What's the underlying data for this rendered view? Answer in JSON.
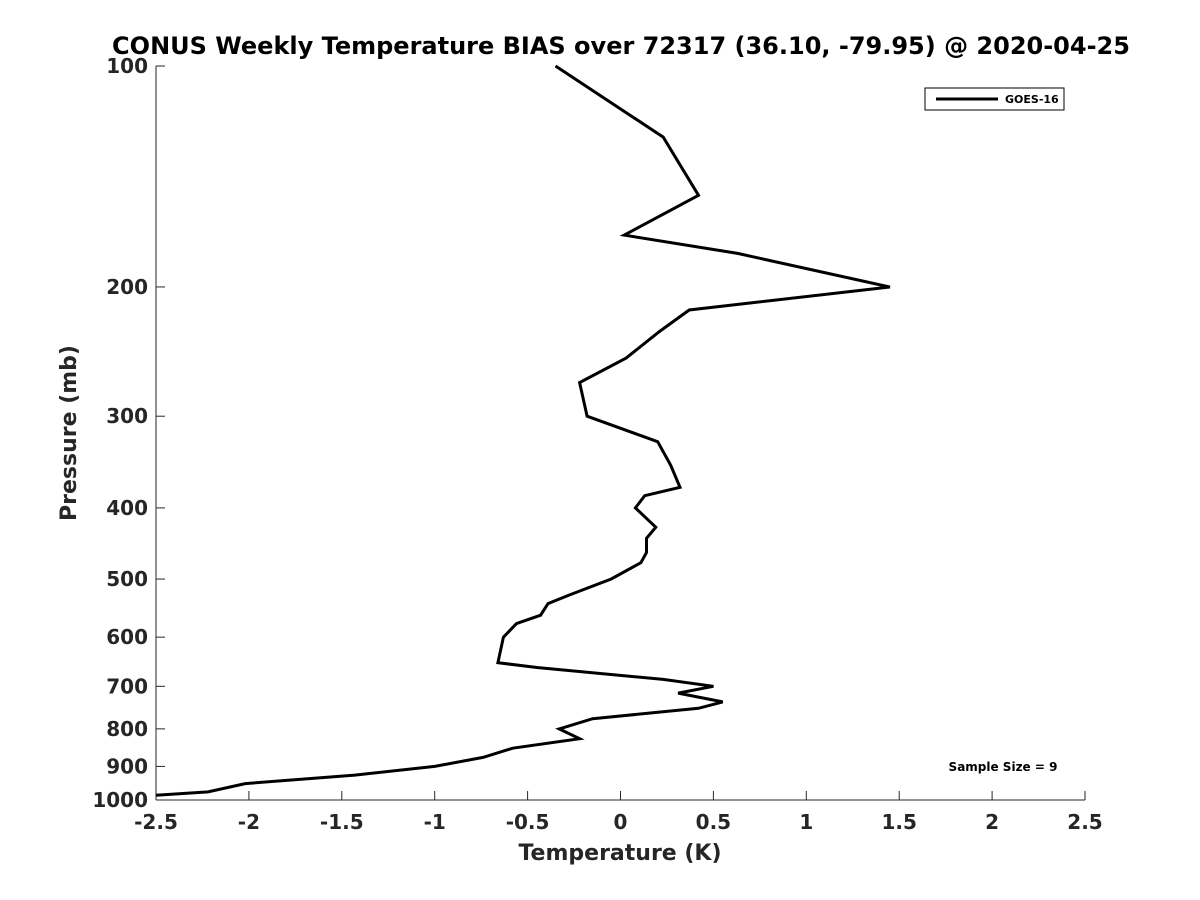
{
  "chart_data": {
    "type": "line",
    "title": "CONUS Weekly Temperature BIAS over 72317 (36.10, -79.95) @ 2020-04-25",
    "xlabel": "Temperature (K)",
    "ylabel": "Pressure (mb)",
    "xlim": [
      -2.5,
      2.5
    ],
    "ylim": [
      100,
      1000
    ],
    "y_scale": "log",
    "y_reversed": true,
    "x_ticks": [
      "-2.5",
      "-2",
      "-1.5",
      "-1",
      "-0.5",
      "0",
      "0.5",
      "1",
      "1.5",
      "2",
      "2.5"
    ],
    "y_ticks": [
      "100",
      "200",
      "300",
      "400",
      "500",
      "600",
      "700",
      "800",
      "900",
      "1000"
    ],
    "grid": false,
    "legend_position": "top-right",
    "annotation": "Sample Size = 9",
    "series": [
      {
        "name": "GOES-16",
        "color": "#000000",
        "points": [
          {
            "t": -0.35,
            "p": 100
          },
          {
            "t": 0.23,
            "p": 125
          },
          {
            "t": 0.42,
            "p": 150
          },
          {
            "t": 0.02,
            "p": 170
          },
          {
            "t": 0.63,
            "p": 180
          },
          {
            "t": 1.45,
            "p": 200
          },
          {
            "t": 0.37,
            "p": 215
          },
          {
            "t": 0.21,
            "p": 230
          },
          {
            "t": 0.03,
            "p": 250
          },
          {
            "t": -0.22,
            "p": 270
          },
          {
            "t": -0.18,
            "p": 300
          },
          {
            "t": 0.2,
            "p": 325
          },
          {
            "t": 0.27,
            "p": 350
          },
          {
            "t": 0.32,
            "p": 375
          },
          {
            "t": 0.13,
            "p": 385
          },
          {
            "t": 0.08,
            "p": 400
          },
          {
            "t": 0.19,
            "p": 425
          },
          {
            "t": 0.14,
            "p": 440
          },
          {
            "t": 0.14,
            "p": 460
          },
          {
            "t": 0.11,
            "p": 475
          },
          {
            "t": -0.05,
            "p": 500
          },
          {
            "t": -0.27,
            "p": 525
          },
          {
            "t": -0.39,
            "p": 540
          },
          {
            "t": -0.43,
            "p": 560
          },
          {
            "t": -0.56,
            "p": 575
          },
          {
            "t": -0.63,
            "p": 600
          },
          {
            "t": -0.66,
            "p": 650
          },
          {
            "t": -0.45,
            "p": 660
          },
          {
            "t": 0.23,
            "p": 685
          },
          {
            "t": 0.5,
            "p": 700
          },
          {
            "t": 0.31,
            "p": 715
          },
          {
            "t": 0.55,
            "p": 735
          },
          {
            "t": 0.42,
            "p": 750
          },
          {
            "t": -0.15,
            "p": 775
          },
          {
            "t": -0.33,
            "p": 800
          },
          {
            "t": -0.22,
            "p": 825
          },
          {
            "t": -0.58,
            "p": 850
          },
          {
            "t": -0.74,
            "p": 875
          },
          {
            "t": -1.0,
            "p": 900
          },
          {
            "t": -1.43,
            "p": 925
          },
          {
            "t": -2.02,
            "p": 950
          },
          {
            "t": -2.22,
            "p": 975
          },
          {
            "t": -2.5,
            "p": 985
          }
        ]
      }
    ]
  }
}
